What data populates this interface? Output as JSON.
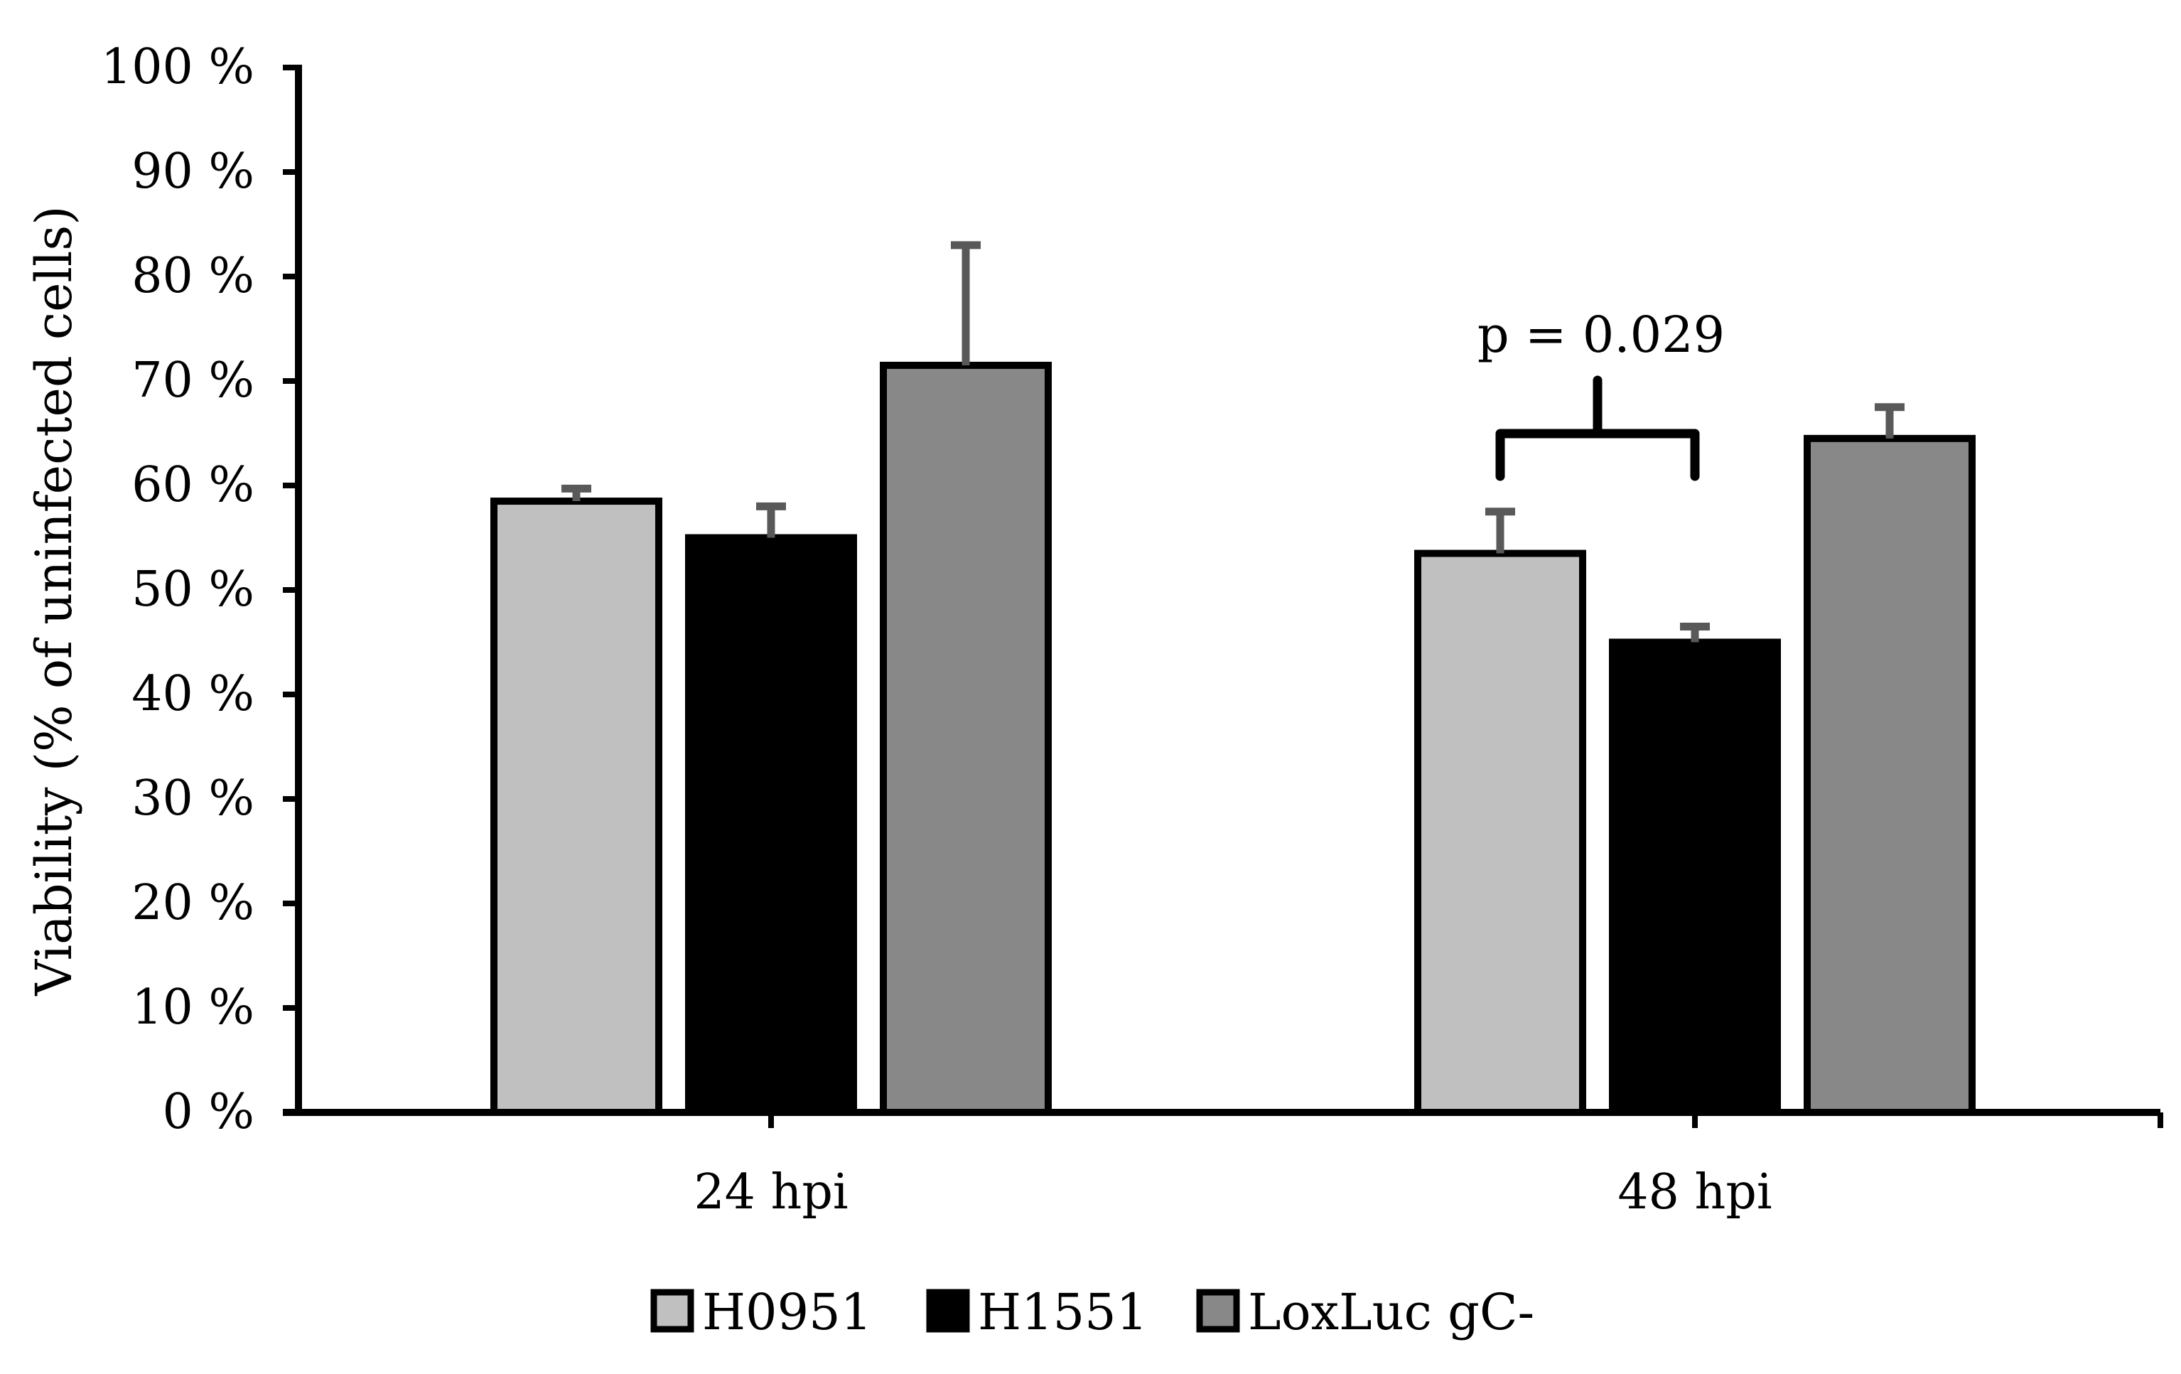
{
  "chart_data": {
    "type": "bar",
    "title": "",
    "xlabel": "",
    "ylabel": "Viability (% of uninfected cells)",
    "categories": [
      "24 hpi",
      "48 hpi"
    ],
    "ylim": [
      0,
      100
    ],
    "yticks": [
      0,
      10,
      20,
      30,
      40,
      50,
      60,
      70,
      80,
      90,
      100
    ],
    "ytick_labels": [
      "0 %",
      "10 %",
      "20 %",
      "30 %",
      "40 %",
      "50 %",
      "60 %",
      "70 %",
      "80 %",
      "90 %",
      "100 %"
    ],
    "series": [
      {
        "name": "H0951",
        "values": [
          58.5,
          53.5
        ],
        "errors": [
          1.2,
          4.0
        ],
        "color": "#c0c0c0"
      },
      {
        "name": "H1551",
        "values": [
          55.0,
          45.0
        ],
        "errors": [
          3.0,
          1.5
        ],
        "color": "#000000"
      },
      {
        "name": "LoxLuc gC-",
        "values": [
          71.5,
          64.5
        ],
        "errors": [
          11.5,
          3.0
        ],
        "color": "#888888"
      }
    ],
    "error_bar_color": "#595959",
    "annotations": [
      {
        "text": "p = 0.029",
        "category": "48 hpi",
        "between": [
          "H0951",
          "H1551"
        ]
      }
    ],
    "legend": {
      "position": "bottom",
      "entries": [
        "H0951",
        "H1551",
        "LoxLuc gC-"
      ]
    },
    "grid": false
  }
}
